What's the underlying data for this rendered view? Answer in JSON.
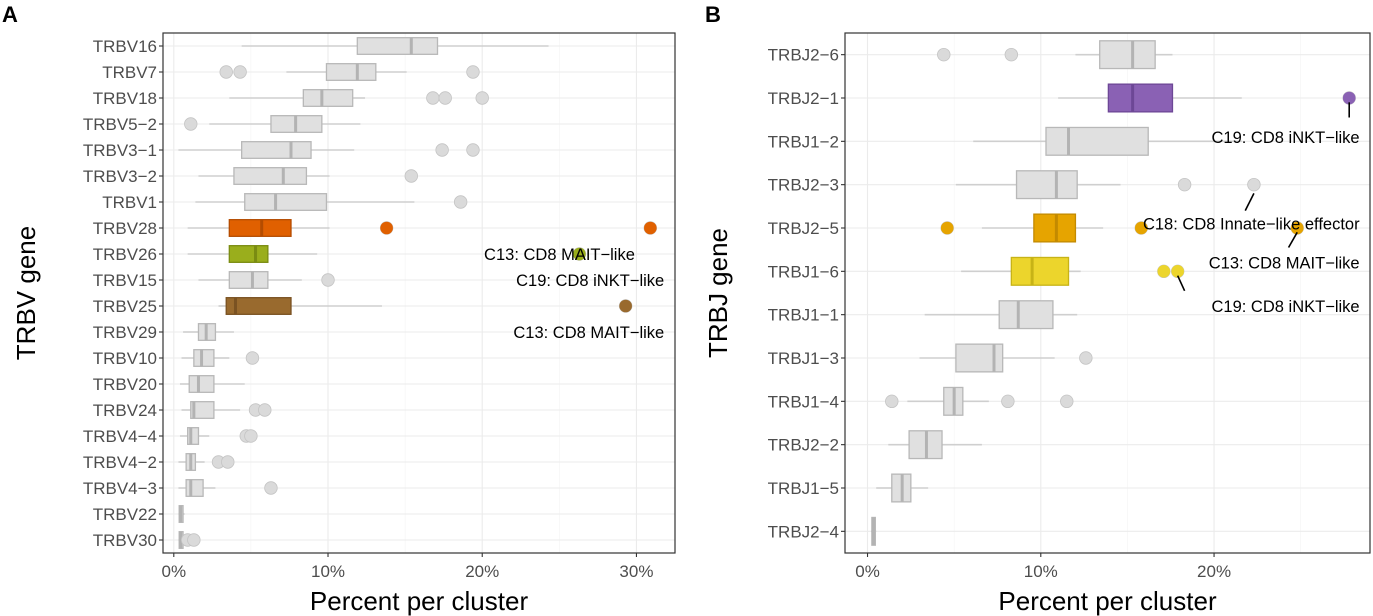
{
  "colors": {
    "default_fill": "#e0e0e0",
    "default_border": "#b8b8b8",
    "whisker": "#cfcfcf",
    "outlier": "#dadada"
  },
  "chart_data": [
    {
      "type": "boxplot",
      "panel_label": "A",
      "xlabel": "Percent per cluster",
      "ylabel": "TRBV gene",
      "xlim": [
        -0.7,
        32.5
      ],
      "x_ticks": [
        0,
        10,
        20,
        30
      ],
      "x_tick_labels": [
        "0%",
        "10%",
        "20%",
        "30%"
      ],
      "grid": true,
      "categories": [
        "TRBV16",
        "TRBV7",
        "TRBV18",
        "TRBV5−2",
        "TRBV3−1",
        "TRBV3−2",
        "TRBV1",
        "TRBV28",
        "TRBV26",
        "TRBV15",
        "TRBV25",
        "TRBV29",
        "TRBV10",
        "TRBV20",
        "TRBV24",
        "TRBV4−4",
        "TRBV4−2",
        "TRBV4−3",
        "TRBV22",
        "TRBV30"
      ],
      "boxes": [
        {
          "gene": "TRBV16",
          "wmin": 4.4,
          "q1": 11.9,
          "median": 15.4,
          "q3": 17.1,
          "wmax": 24.3,
          "outliers": []
        },
        {
          "gene": "TRBV7",
          "wmin": 7.3,
          "q1": 9.9,
          "median": 11.9,
          "q3": 13.1,
          "wmax": 15.1,
          "outliers": [
            3.4,
            4.3,
            19.4
          ]
        },
        {
          "gene": "TRBV18",
          "wmin": 3.6,
          "q1": 8.4,
          "median": 9.6,
          "q3": 11.6,
          "wmax": 12.4,
          "outliers": [
            16.8,
            17.6,
            20.0
          ]
        },
        {
          "gene": "TRBV5−2",
          "wmin": 2.3,
          "q1": 6.3,
          "median": 7.9,
          "q3": 9.6,
          "wmax": 12.1,
          "outliers": [
            1.1
          ]
        },
        {
          "gene": "TRBV3−1",
          "wmin": 0.3,
          "q1": 4.4,
          "median": 7.6,
          "q3": 8.9,
          "wmax": 11.7,
          "outliers": [
            17.4,
            19.4
          ]
        },
        {
          "gene": "TRBV3−2",
          "wmin": 1.6,
          "q1": 3.9,
          "median": 7.1,
          "q3": 8.6,
          "wmax": 10.1,
          "outliers": [
            15.4
          ]
        },
        {
          "gene": "TRBV1",
          "wmin": 1.4,
          "q1": 4.6,
          "median": 6.6,
          "q3": 9.9,
          "wmax": 15.6,
          "outliers": [
            18.6
          ]
        },
        {
          "gene": "TRBV28",
          "wmin": 0.9,
          "q1": 3.6,
          "median": 5.7,
          "q3": 7.6,
          "wmax": 10.1,
          "outliers": [
            13.8,
            30.9
          ],
          "fill": "#e06000",
          "border": "#b44c00"
        },
        {
          "gene": "TRBV26",
          "wmin": 0.9,
          "q1": 3.6,
          "median": 5.3,
          "q3": 6.1,
          "wmax": 9.3,
          "outliers": [
            26.3
          ],
          "fill": "#9aae1c",
          "border": "#7a8c12"
        },
        {
          "gene": "TRBV15",
          "wmin": 1.6,
          "q1": 3.6,
          "median": 5.1,
          "q3": 6.1,
          "wmax": 8.3,
          "outliers": [
            10.0
          ]
        },
        {
          "gene": "TRBV25",
          "wmin": 2.9,
          "q1": 3.4,
          "median": 4.0,
          "q3": 7.6,
          "wmax": 13.5,
          "outliers": [
            29.3
          ],
          "fill": "#996a2e",
          "border": "#7a5222"
        },
        {
          "gene": "TRBV29",
          "wmin": 0.6,
          "q1": 1.6,
          "median": 2.1,
          "q3": 2.7,
          "wmax": 3.9,
          "outliers": []
        },
        {
          "gene": "TRBV10",
          "wmin": 0.5,
          "q1": 1.3,
          "median": 1.8,
          "q3": 2.6,
          "wmax": 3.6,
          "outliers": [
            5.1
          ]
        },
        {
          "gene": "TRBV20",
          "wmin": 0.4,
          "q1": 1.0,
          "median": 1.6,
          "q3": 2.6,
          "wmax": 4.6,
          "outliers": []
        },
        {
          "gene": "TRBV24",
          "wmin": 0.5,
          "q1": 1.1,
          "median": 1.3,
          "q3": 2.6,
          "wmax": 4.3,
          "outliers": [
            5.3,
            5.9
          ]
        },
        {
          "gene": "TRBV4−4",
          "wmin": 0.4,
          "q1": 0.9,
          "median": 1.1,
          "q3": 1.6,
          "wmax": 2.3,
          "outliers": [
            4.7,
            5.0
          ]
        },
        {
          "gene": "TRBV4−2",
          "wmin": 0.3,
          "q1": 0.8,
          "median": 1.1,
          "q3": 1.4,
          "wmax": 2.0,
          "outliers": [
            2.9,
            3.5
          ]
        },
        {
          "gene": "TRBV4−3",
          "wmin": 0.3,
          "q1": 0.8,
          "median": 1.1,
          "q3": 1.9,
          "wmax": 2.7,
          "outliers": [
            6.3
          ]
        },
        {
          "gene": "TRBV22",
          "wmin": 0.3,
          "q1": 0.35,
          "median": 0.45,
          "q3": 0.6,
          "wmax": 0.7,
          "outliers": []
        },
        {
          "gene": "TRBV30",
          "wmin": 0.3,
          "q1": 0.35,
          "median": 0.45,
          "q3": 0.6,
          "wmax": 0.8,
          "outliers": [
            0.9,
            1.3
          ]
        }
      ],
      "highlight_points": [
        {
          "gene": "TRBV28",
          "x": 30.9,
          "color": "#e06000"
        },
        {
          "gene": "TRBV28",
          "x": 13.8,
          "color": "#e06000"
        },
        {
          "gene": "TRBV26",
          "x": 26.3,
          "color": "#9aae1c"
        },
        {
          "gene": "TRBV25",
          "x": 29.3,
          "color": "#996a2e"
        }
      ],
      "annotations": [
        {
          "text": "C13: CD8 MAIT−like",
          "gene": "TRBV26",
          "x_end": 29.9
        },
        {
          "text": "C19: CD8 iNKT−like",
          "gene": "TRBV15",
          "x_end": 31.8
        },
        {
          "text": "C13: CD8 MAIT−like",
          "gene": "TRBV29",
          "x_end": 31.8
        }
      ]
    },
    {
      "type": "boxplot",
      "panel_label": "B",
      "xlabel": "Percent per cluster",
      "ylabel": "TRBJ gene",
      "xlim": [
        -1.3,
        29.0
      ],
      "x_ticks": [
        0,
        10,
        20
      ],
      "x_tick_labels": [
        "0%",
        "10%",
        "20%"
      ],
      "grid": true,
      "categories": [
        "TRBJ2−6",
        "TRBJ2−1",
        "TRBJ1−2",
        "TRBJ2−3",
        "TRBJ2−5",
        "TRBJ1−6",
        "TRBJ1−1",
        "TRBJ1−3",
        "TRBJ1−4",
        "TRBJ2−2",
        "TRBJ1−5",
        "TRBJ2−4"
      ],
      "boxes": [
        {
          "gene": "TRBJ2−6",
          "wmin": 12.0,
          "q1": 13.4,
          "median": 15.3,
          "q3": 16.6,
          "wmax": 17.6,
          "outliers": [
            4.4,
            8.3
          ]
        },
        {
          "gene": "TRBJ2−1",
          "wmin": 11.0,
          "q1": 13.9,
          "median": 15.3,
          "q3": 17.6,
          "wmax": 21.6,
          "outliers": [
            27.8
          ],
          "fill": "#8a61b4",
          "border": "#6d4796"
        },
        {
          "gene": "TRBJ1−2",
          "wmin": 6.1,
          "q1": 10.3,
          "median": 11.6,
          "q3": 16.2,
          "wmax": 21.6,
          "outliers": []
        },
        {
          "gene": "TRBJ2−3",
          "wmin": 5.1,
          "q1": 8.6,
          "median": 10.9,
          "q3": 12.1,
          "wmax": 14.6,
          "outliers": [
            18.3,
            22.3
          ]
        },
        {
          "gene": "TRBJ2−5",
          "wmin": 6.6,
          "q1": 9.6,
          "median": 10.9,
          "q3": 12.0,
          "wmax": 13.6,
          "outliers": [
            4.6,
            15.8,
            24.8
          ],
          "fill": "#e6a400",
          "border": "#c38a00"
        },
        {
          "gene": "TRBJ1−6",
          "wmin": 5.4,
          "q1": 8.3,
          "median": 9.5,
          "q3": 11.6,
          "wmax": 12.3,
          "outliers": [
            17.1,
            17.9
          ],
          "fill": "#ecd52c",
          "border": "#c7b316"
        },
        {
          "gene": "TRBJ1−1",
          "wmin": 3.3,
          "q1": 7.6,
          "median": 8.7,
          "q3": 10.7,
          "wmax": 12.1,
          "outliers": []
        },
        {
          "gene": "TRBJ1−3",
          "wmin": 3.0,
          "q1": 5.1,
          "median": 7.3,
          "q3": 7.8,
          "wmax": 10.8,
          "outliers": [
            12.6
          ]
        },
        {
          "gene": "TRBJ1−4",
          "wmin": 2.3,
          "q1": 4.4,
          "median": 5.0,
          "q3": 5.5,
          "wmax": 7.0,
          "outliers": [
            1.4,
            8.1,
            11.5
          ]
        },
        {
          "gene": "TRBJ2−2",
          "wmin": 1.2,
          "q1": 2.4,
          "median": 3.4,
          "q3": 4.3,
          "wmax": 6.6,
          "outliers": []
        },
        {
          "gene": "TRBJ1−5",
          "wmin": 0.5,
          "q1": 1.4,
          "median": 2.0,
          "q3": 2.5,
          "wmax": 3.5,
          "outliers": []
        },
        {
          "gene": "TRBJ2−4",
          "wmin": 0.2,
          "q1": 0.25,
          "median": 0.35,
          "q3": 0.45,
          "wmax": 0.5,
          "outliers": []
        }
      ],
      "highlight_points": [
        {
          "gene": "TRBJ2−1",
          "x": 27.8,
          "color": "#8a61b4"
        },
        {
          "gene": "TRBJ2−5",
          "x": 24.8,
          "color": "#e6a400"
        },
        {
          "gene": "TRBJ2−5",
          "x": 15.8,
          "color": "#e6a400"
        },
        {
          "gene": "TRBJ2−5",
          "x": 4.6,
          "color": "#e6a400"
        },
        {
          "gene": "TRBJ1−6",
          "x": 17.1,
          "color": "#ecd52c"
        },
        {
          "gene": "TRBJ1−6",
          "x": 17.9,
          "color": "#ecd52c"
        }
      ],
      "annotations": [
        {
          "text": "C19: CD8 iNKT−like",
          "gene": "TRBJ2−1",
          "y_offset": 0.9,
          "x_end": 28.4,
          "leader": {
            "x1": 27.8,
            "y1": 0.1,
            "x2": 27.8,
            "y2": 0.45
          }
        },
        {
          "text": "C18: CD8 Innate−like effector",
          "gene": "TRBJ2−3",
          "y_offset": 0.9,
          "x_end": 28.4,
          "leader": {
            "x1": 21.8,
            "y1": 0.6,
            "x2": 22.3,
            "y2": 0.2
          }
        },
        {
          "text": "C13: CD8 MAIT−like",
          "gene": "TRBJ2−5",
          "y_offset": 0.8,
          "x_end": 28.4,
          "leader": {
            "x1": 24.3,
            "y1": 0.45,
            "x2": 24.8,
            "y2": 0.1
          }
        },
        {
          "text": "C19: CD8 iNKT−like",
          "gene": "TRBJ1−6",
          "y_offset": 0.8,
          "x_end": 28.4,
          "leader": {
            "x1": 17.9,
            "y1": 0.1,
            "x2": 18.3,
            "y2": 0.45
          }
        }
      ]
    }
  ]
}
